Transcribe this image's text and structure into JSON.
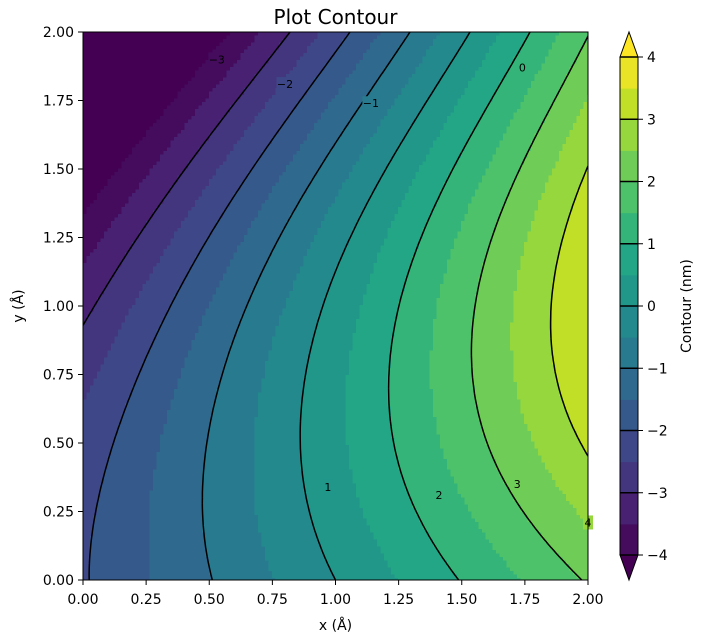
{
  "chart_data": {
    "type": "contour",
    "title": "Plot Contour",
    "xlabel": "x (Å)",
    "ylabel": "y (Å)",
    "colorbar_label": "Contour (nm)",
    "colormap": "viridis",
    "xlim": [
      0,
      2
    ],
    "ylim": [
      0,
      2
    ],
    "x_ticks": [
      "0.00",
      "0.25",
      "0.50",
      "0.75",
      "1.00",
      "1.25",
      "1.50",
      "1.75",
      "2.00"
    ],
    "y_ticks": [
      "0.00",
      "0.25",
      "0.50",
      "0.75",
      "1.00",
      "1.25",
      "1.50",
      "1.75",
      "2.00"
    ],
    "colorbar_ticks": [
      "−4",
      "−3",
      "−2",
      "−1",
      "0",
      "1",
      "2",
      "3",
      "4"
    ],
    "colorbar_range": [
      -4,
      4
    ],
    "colorbar_extend": "both",
    "fill_levels_step": 0.5,
    "line_levels": [
      -3,
      -2,
      -1,
      0,
      1,
      2,
      3,
      4
    ],
    "contour_labels": [
      {
        "text": "−3",
        "x": 0.53,
        "y": 1.9
      },
      {
        "text": "−2",
        "x": 0.8,
        "y": 1.81
      },
      {
        "text": "−1",
        "x": 1.14,
        "y": 1.74
      },
      {
        "text": "0",
        "x": 1.74,
        "y": 1.87
      },
      {
        "text": "1",
        "x": 0.97,
        "y": 0.34
      },
      {
        "text": "2",
        "x": 1.41,
        "y": 0.31
      },
      {
        "text": "3",
        "x": 1.72,
        "y": 0.35
      },
      {
        "text": "4",
        "x": 2.0,
        "y": 0.21
      }
    ],
    "grid": false
  }
}
